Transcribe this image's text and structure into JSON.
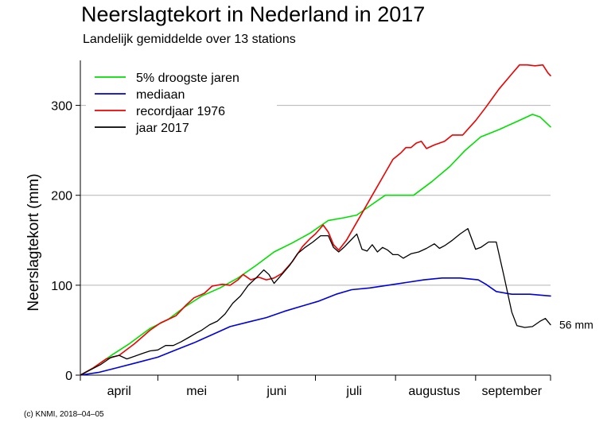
{
  "chart_data": {
    "type": "line",
    "title": "Neerslagtekort in Nederland in 2017",
    "subtitle": "Landelijk gemiddelde over 13 stations",
    "ylabel": "Neerslagtekort (mm)",
    "xlabel": "",
    "ylim": [
      0,
      350
    ],
    "xlim": [
      "04-01",
      "09-30"
    ],
    "yticks": [
      0,
      100,
      200,
      300
    ],
    "ytick_labels": [
      "0",
      "100",
      "200",
      "300"
    ],
    "xtick_dates": [
      "04-01",
      "05-01",
      "06-01",
      "07-01",
      "08-01",
      "09-01",
      "09-30"
    ],
    "month_labels": [
      {
        "label": "april",
        "date": "04-16"
      },
      {
        "label": "mei",
        "date": "05-16"
      },
      {
        "label": "juni",
        "date": "06-16"
      },
      {
        "label": "juli",
        "date": "07-16"
      },
      {
        "label": "augustus",
        "date": "08-16"
      },
      {
        "label": "september",
        "date": "09-15"
      }
    ],
    "grid": "horizontal",
    "legend_position": "top-left",
    "end_annotation": "56 mm",
    "series": [
      {
        "name": "5% droogste jaren",
        "color": "#00e000",
        "points": [
          [
            "04-01",
            0
          ],
          [
            "04-06",
            8
          ],
          [
            "04-13",
            22
          ],
          [
            "04-20",
            35
          ],
          [
            "04-28",
            52
          ],
          [
            "05-05",
            62
          ],
          [
            "05-11",
            75
          ],
          [
            "05-18",
            88
          ],
          [
            "05-25",
            97
          ],
          [
            "06-01",
            108
          ],
          [
            "06-08",
            122
          ],
          [
            "06-15",
            137
          ],
          [
            "06-22",
            147
          ],
          [
            "06-29",
            158
          ],
          [
            "07-06",
            172
          ],
          [
            "07-12",
            175
          ],
          [
            "07-17",
            178
          ],
          [
            "07-23",
            190
          ],
          [
            "07-28",
            200
          ],
          [
            "08-03",
            200
          ],
          [
            "08-08",
            200
          ],
          [
            "08-15",
            215
          ],
          [
            "08-22",
            232
          ],
          [
            "08-28",
            250
          ],
          [
            "09-03",
            265
          ],
          [
            "09-10",
            273
          ],
          [
            "09-17",
            282
          ],
          [
            "09-23",
            290
          ],
          [
            "09-26",
            287
          ],
          [
            "09-30",
            276
          ]
        ]
      },
      {
        "name": "mediaan",
        "color": "#0000dd",
        "points": [
          [
            "04-01",
            0
          ],
          [
            "04-08",
            3
          ],
          [
            "04-15",
            8
          ],
          [
            "04-23",
            14
          ],
          [
            "05-01",
            20
          ],
          [
            "05-08",
            28
          ],
          [
            "05-15",
            36
          ],
          [
            "05-22",
            45
          ],
          [
            "05-29",
            54
          ],
          [
            "06-05",
            59
          ],
          [
            "06-12",
            64
          ],
          [
            "06-19",
            71
          ],
          [
            "06-26",
            77
          ],
          [
            "07-02",
            82
          ],
          [
            "07-09",
            90
          ],
          [
            "07-15",
            95
          ],
          [
            "07-22",
            97
          ],
          [
            "07-29",
            100
          ],
          [
            "08-05",
            103
          ],
          [
            "08-12",
            106
          ],
          [
            "08-19",
            108
          ],
          [
            "08-26",
            108
          ],
          [
            "09-02",
            106
          ],
          [
            "09-05",
            101
          ],
          [
            "09-09",
            93
          ],
          [
            "09-15",
            90
          ],
          [
            "09-22",
            90
          ],
          [
            "09-30",
            88
          ]
        ]
      },
      {
        "name": "recordjaar 1976",
        "color": "#ee0000",
        "points": [
          [
            "04-01",
            0
          ],
          [
            "04-06",
            8
          ],
          [
            "04-11",
            18
          ],
          [
            "04-16",
            22
          ],
          [
            "04-22",
            35
          ],
          [
            "04-28",
            50
          ],
          [
            "05-02",
            58
          ],
          [
            "05-05",
            62
          ],
          [
            "05-08",
            66
          ],
          [
            "05-12",
            78
          ],
          [
            "05-15",
            86
          ],
          [
            "05-19",
            91
          ],
          [
            "05-22",
            99
          ],
          [
            "05-26",
            101
          ],
          [
            "05-29",
            100
          ],
          [
            "06-01",
            106
          ],
          [
            "06-03",
            112
          ],
          [
            "06-06",
            106
          ],
          [
            "06-09",
            109
          ],
          [
            "06-12",
            106
          ],
          [
            "06-15",
            108
          ],
          [
            "06-18",
            113
          ],
          [
            "06-22",
            126
          ],
          [
            "06-26",
            143
          ],
          [
            "06-29",
            152
          ],
          [
            "07-01",
            157
          ],
          [
            "07-04",
            167
          ],
          [
            "07-06",
            159
          ],
          [
            "07-08",
            145
          ],
          [
            "07-10",
            139
          ],
          [
            "07-13",
            150
          ],
          [
            "07-16",
            165
          ],
          [
            "07-19",
            180
          ],
          [
            "07-23",
            200
          ],
          [
            "07-27",
            220
          ],
          [
            "07-31",
            240
          ],
          [
            "08-03",
            247
          ],
          [
            "08-05",
            253
          ],
          [
            "08-07",
            253
          ],
          [
            "08-09",
            258
          ],
          [
            "08-11",
            260
          ],
          [
            "08-13",
            252
          ],
          [
            "08-16",
            256
          ],
          [
            "08-20",
            260
          ],
          [
            "08-23",
            267
          ],
          [
            "08-27",
            267
          ],
          [
            "09-01",
            283
          ],
          [
            "09-05",
            298
          ],
          [
            "09-10",
            318
          ],
          [
            "09-15",
            335
          ],
          [
            "09-18",
            345
          ],
          [
            "09-21",
            345
          ],
          [
            "09-24",
            344
          ],
          [
            "09-27",
            345
          ],
          [
            "09-29",
            336
          ],
          [
            "09-30",
            333
          ]
        ]
      },
      {
        "name": "jaar 2017",
        "color": "#000000",
        "points": [
          [
            "04-01",
            0
          ],
          [
            "04-05",
            6
          ],
          [
            "04-09",
            12
          ],
          [
            "04-13",
            20
          ],
          [
            "04-16",
            22
          ],
          [
            "04-19",
            18
          ],
          [
            "04-22",
            21
          ],
          [
            "04-25",
            24
          ],
          [
            "04-28",
            27
          ],
          [
            "05-01",
            28
          ],
          [
            "05-04",
            33
          ],
          [
            "05-07",
            33
          ],
          [
            "05-10",
            37
          ],
          [
            "05-13",
            42
          ],
          [
            "05-16",
            47
          ],
          [
            "05-18",
            50
          ],
          [
            "05-21",
            56
          ],
          [
            "05-24",
            60
          ],
          [
            "05-27",
            68
          ],
          [
            "05-30",
            80
          ],
          [
            "06-02",
            88
          ],
          [
            "06-05",
            100
          ],
          [
            "06-08",
            108
          ],
          [
            "06-11",
            117
          ],
          [
            "06-13",
            112
          ],
          [
            "06-15",
            102
          ],
          [
            "06-18",
            112
          ],
          [
            "06-21",
            122
          ],
          [
            "06-24",
            135
          ],
          [
            "06-27",
            142
          ],
          [
            "06-30",
            148
          ],
          [
            "07-03",
            155
          ],
          [
            "07-06",
            155
          ],
          [
            "07-08",
            142
          ],
          [
            "07-10",
            137
          ],
          [
            "07-12",
            142
          ],
          [
            "07-14",
            148
          ],
          [
            "07-17",
            157
          ],
          [
            "07-19",
            140
          ],
          [
            "07-21",
            138
          ],
          [
            "07-23",
            145
          ],
          [
            "07-25",
            137
          ],
          [
            "07-27",
            142
          ],
          [
            "07-29",
            139
          ],
          [
            "07-31",
            134
          ],
          [
            "08-02",
            134
          ],
          [
            "08-04",
            130
          ],
          [
            "08-07",
            135
          ],
          [
            "08-10",
            137
          ],
          [
            "08-13",
            141
          ],
          [
            "08-16",
            146
          ],
          [
            "08-18",
            141
          ],
          [
            "08-20",
            144
          ],
          [
            "08-23",
            150
          ],
          [
            "08-26",
            157
          ],
          [
            "08-29",
            163
          ],
          [
            "09-01",
            140
          ],
          [
            "09-03",
            142
          ],
          [
            "09-06",
            148
          ],
          [
            "09-09",
            148
          ],
          [
            "09-12",
            110
          ],
          [
            "09-15",
            70
          ],
          [
            "09-17",
            55
          ],
          [
            "09-20",
            53
          ],
          [
            "09-23",
            54
          ],
          [
            "09-26",
            60
          ],
          [
            "09-28",
            63
          ],
          [
            "09-30",
            56
          ]
        ]
      }
    ]
  },
  "footer": {
    "credit": "(c) KNMI, 2018–04–05"
  }
}
